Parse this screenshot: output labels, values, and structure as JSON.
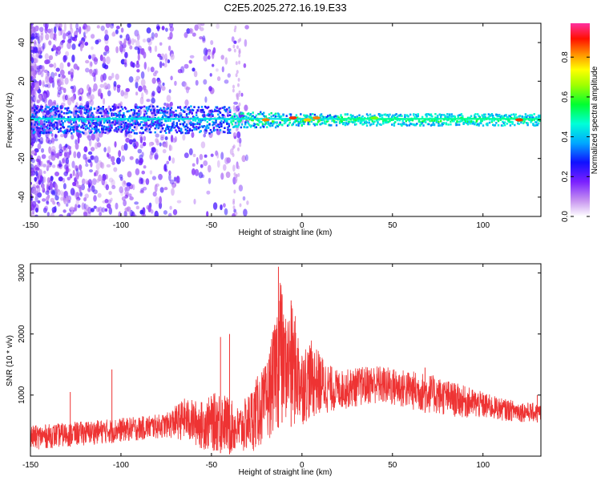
{
  "chart_data": [
    {
      "type": "heatmap",
      "title": "C2E5.2025.272.16.19.E33",
      "xlabel": "Height of straight line (km)",
      "ylabel": "Frequency (Hz)",
      "xlim": [
        -150,
        132
      ],
      "ylim": [
        -50,
        50
      ],
      "x_ticks": [
        -150,
        -100,
        -50,
        0,
        50,
        100
      ],
      "y_ticks": [
        -40,
        -20,
        0,
        20,
        40
      ],
      "grid": false,
      "colorbar": {
        "label": "Normalized spectral amplitude",
        "range": [
          0,
          0.97
        ],
        "ticks": [
          "0.0",
          "0.2",
          "0.4",
          "0.6",
          "0.8"
        ],
        "tick_values": [
          0.0,
          0.2,
          0.4,
          0.6,
          0.8
        ],
        "colormap": "rainbow",
        "colors": [
          "#ffffff",
          "#b068e8",
          "#3a00ff",
          "#00a0ff",
          "#00ffd0",
          "#00ff00",
          "#ffff00",
          "#ff8000",
          "#ff0000",
          "#ff00a0"
        ]
      },
      "description_of_values": "energy concentrated near 0 Hz; scattered purple speckle at heights below -30 km",
      "band_centre_hz": 0,
      "hotspots": [
        {
          "x": -20,
          "y": 0,
          "value": 0.85
        },
        {
          "x": -5,
          "y": 1,
          "value": 0.9
        },
        {
          "x": 3,
          "y": 0,
          "value": 0.8
        },
        {
          "x": 8,
          "y": 1,
          "value": 0.85
        },
        {
          "x": 40,
          "y": 1,
          "value": 0.65
        },
        {
          "x": 120,
          "y": 0,
          "value": 0.9
        }
      ]
    },
    {
      "type": "line",
      "xlabel": "Height of straight line (km)",
      "ylabel": "SNR (10 * v/v)",
      "xlim": [
        -150,
        132
      ],
      "ylim": [
        0,
        3150
      ],
      "x_ticks": [
        -150,
        -100,
        -50,
        0,
        50,
        100
      ],
      "y_ticks": [
        1000,
        2000,
        3000
      ],
      "grid": false,
      "series": [
        {
          "color": "#ee3333",
          "x": [
            -150,
            -130,
            -110,
            -90,
            -75,
            -65,
            -55,
            -45,
            -40,
            -35,
            -30,
            -25,
            -20,
            -15,
            -12,
            -10,
            -5,
            0,
            5,
            10,
            15,
            20,
            30,
            40,
            50,
            60,
            70,
            80,
            90,
            100,
            110,
            120,
            132
          ],
          "upper": [
            500,
            550,
            600,
            650,
            700,
            950,
            900,
            1100,
            950,
            800,
            1000,
            1300,
            1500,
            2200,
            3100,
            2300,
            2500,
            1800,
            1900,
            1700,
            1500,
            1400,
            1450,
            1500,
            1450,
            1400,
            1350,
            1250,
            1150,
            1050,
            950,
            900,
            850
          ],
          "lower": [
            100,
            150,
            200,
            250,
            300,
            250,
            100,
            50,
            30,
            20,
            50,
            100,
            200,
            400,
            500,
            600,
            450,
            500,
            600,
            650,
            700,
            750,
            800,
            850,
            800,
            750,
            700,
            650,
            620,
            600,
            580,
            560,
            550
          ],
          "spikes": [
            {
              "x": -128,
              "value": 1050
            },
            {
              "x": -105,
              "value": 1420
            },
            {
              "x": -45,
              "value": 1950
            },
            {
              "x": -40,
              "value": 2000
            },
            {
              "x": -13,
              "value": 3100
            },
            {
              "x": -11,
              "value": 2650
            },
            {
              "x": -6,
              "value": 2550
            },
            {
              "x": 68,
              "value": 1450
            },
            {
              "x": 130,
              "value": 1000
            }
          ]
        }
      ]
    }
  ]
}
